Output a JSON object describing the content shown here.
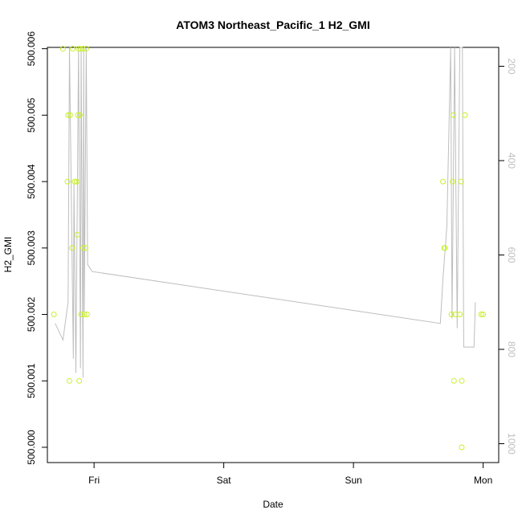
{
  "chart_data": {
    "type": "scatter",
    "title": "ATOM3 Northeast_Pacific_1 H2_GMI",
    "xlabel": "Date",
    "ylabel": "H2_GMI",
    "x_ticks": [
      {
        "label": "Fri",
        "value": 0
      },
      {
        "label": "Sat",
        "value": 1
      },
      {
        "label": "Sun",
        "value": 2
      },
      {
        "label": "Mon",
        "value": 3
      }
    ],
    "xlim": [
      -0.36,
      3.12
    ],
    "y_ticks": [
      "500.000",
      "500.001",
      "500.002",
      "500.003",
      "500.004",
      "500.005",
      "500.006"
    ],
    "ylim": [
      499.99977,
      500.00602
    ],
    "y2_ticks": [
      "200",
      "400",
      "600",
      "800",
      "1000"
    ],
    "y2lim": [
      1040,
      160
    ],
    "colors": {
      "points": "#c8f02c",
      "line": "#bebebe",
      "axis": "#000000",
      "right_axis": "#bebebe"
    },
    "series": [
      {
        "role": "points",
        "x": [
          -0.31,
          -0.24,
          -0.205,
          -0.2,
          -0.19,
          -0.185,
          -0.17,
          -0.165,
          -0.15,
          -0.135,
          -0.13,
          -0.125,
          -0.12,
          -0.115,
          -0.11,
          -0.105,
          -0.1,
          -0.085,
          -0.085,
          -0.075,
          -0.065,
          -0.06,
          -0.055,
          2.69,
          2.7,
          2.705,
          2.755,
          2.765,
          2.77,
          2.775,
          2.785,
          2.82,
          2.83,
          2.835,
          2.835,
          2.86,
          2.985,
          3.0
        ],
        "y": [
          500.002,
          500.006,
          500.004,
          500.005,
          500.001,
          500.005,
          500.003,
          500.006,
          500.004,
          500.004,
          500.0032,
          500.005,
          500.006,
          500.001,
          500.005,
          500.006,
          500.002,
          500.003,
          500.006,
          500.002,
          500.003,
          500.006,
          500.002,
          500.004,
          500.003,
          500.003,
          500.002,
          500.004,
          500.005,
          500.001,
          500.002,
          500.002,
          500.004,
          500.001,
          500.0,
          500.005,
          500.002,
          500.002
        ]
      },
      {
        "role": "line",
        "x": [
          -0.3,
          -0.24,
          -0.2,
          -0.19,
          -0.16,
          -0.155,
          -0.14,
          -0.12,
          -0.105,
          -0.1,
          -0.085,
          -0.08,
          -0.075,
          -0.06,
          -0.05,
          -0.015,
          2.67,
          2.69,
          2.72,
          2.75,
          2.76,
          2.78,
          2.8,
          2.82,
          2.84,
          2.85,
          2.87,
          2.93,
          2.94
        ],
        "y": [
          745,
          780,
          700,
          100,
          820,
          450,
          850,
          100,
          840,
          100,
          860,
          100,
          720,
          100,
          620,
          635,
          745,
          650,
          540,
          100,
          735,
          100,
          755,
          100,
          100,
          795,
          795,
          795,
          700
        ]
      }
    ]
  }
}
